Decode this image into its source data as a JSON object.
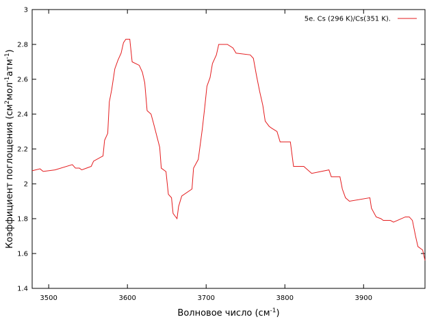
{
  "chart_data": {
    "type": "line",
    "xlabel": [
      {
        "text": "Волновое число (см"
      },
      {
        "text": "-1",
        "sup": true
      },
      {
        "text": ")"
      }
    ],
    "ylabel": [
      {
        "text": "Коэффициент поглощения (см"
      },
      {
        "text": "2",
        "sup": true
      },
      {
        "text": "мол"
      },
      {
        "text": "-1",
        "sup": true
      },
      {
        "text": "атм"
      },
      {
        "text": "-1",
        "sup": true
      },
      {
        "text": ")"
      }
    ],
    "xlim": [
      3479,
      3978
    ],
    "ylim": [
      1.4,
      3.0
    ],
    "xticks": [
      3500,
      3600,
      3700,
      3800,
      3900
    ],
    "yticks": [
      1.4,
      1.6,
      1.8,
      2,
      2.2,
      2.4,
      2.6,
      2.8,
      3
    ],
    "legend": "top-right",
    "series": [
      {
        "name": "5e. Cs (296 K)/Cs(351 K).",
        "color": "#e41a1c",
        "x": [
          3479,
          3489,
          3493,
          3508,
          3530,
          3534,
          3539,
          3542,
          3554,
          3557,
          3569,
          3571,
          3575,
          3577,
          3580,
          3584,
          3588,
          3592,
          3595,
          3598,
          3603,
          3606,
          3615,
          3619,
          3622,
          3625,
          3630,
          3633,
          3637,
          3641,
          3643,
          3649,
          3652,
          3656,
          3658,
          3663,
          3665,
          3669,
          3682,
          3684,
          3690,
          3695,
          3698,
          3701,
          3705,
          3708,
          3713,
          3716,
          3727,
          3734,
          3738,
          3756,
          3760,
          3764,
          3768,
          3772,
          3775,
          3780,
          3783,
          3790,
          3794,
          3807,
          3811,
          3824,
          3834,
          3856,
          3859,
          3870,
          3873,
          3877,
          3882,
          3908,
          3910,
          3916,
          3922,
          3925,
          3934,
          3938,
          3953,
          3958,
          3962,
          3966,
          3969,
          3975,
          3978
        ],
        "values": [
          2.075,
          2.086,
          2.071,
          2.08,
          2.11,
          2.09,
          2.09,
          2.08,
          2.1,
          2.13,
          2.16,
          2.25,
          2.29,
          2.47,
          2.54,
          2.66,
          2.71,
          2.75,
          2.81,
          2.83,
          2.83,
          2.7,
          2.68,
          2.64,
          2.58,
          2.42,
          2.4,
          2.35,
          2.28,
          2.21,
          2.09,
          2.07,
          1.94,
          1.92,
          1.83,
          1.8,
          1.87,
          1.93,
          1.97,
          2.09,
          2.14,
          2.31,
          2.43,
          2.56,
          2.61,
          2.69,
          2.74,
          2.8,
          2.8,
          2.78,
          2.75,
          2.74,
          2.72,
          2.62,
          2.53,
          2.45,
          2.36,
          2.33,
          2.32,
          2.3,
          2.24,
          2.24,
          2.1,
          2.1,
          2.06,
          2.08,
          2.04,
          2.04,
          1.97,
          1.92,
          1.9,
          1.92,
          1.86,
          1.81,
          1.8,
          1.79,
          1.79,
          1.78,
          1.81,
          1.81,
          1.79,
          1.7,
          1.64,
          1.62,
          1.56
        ]
      }
    ]
  }
}
